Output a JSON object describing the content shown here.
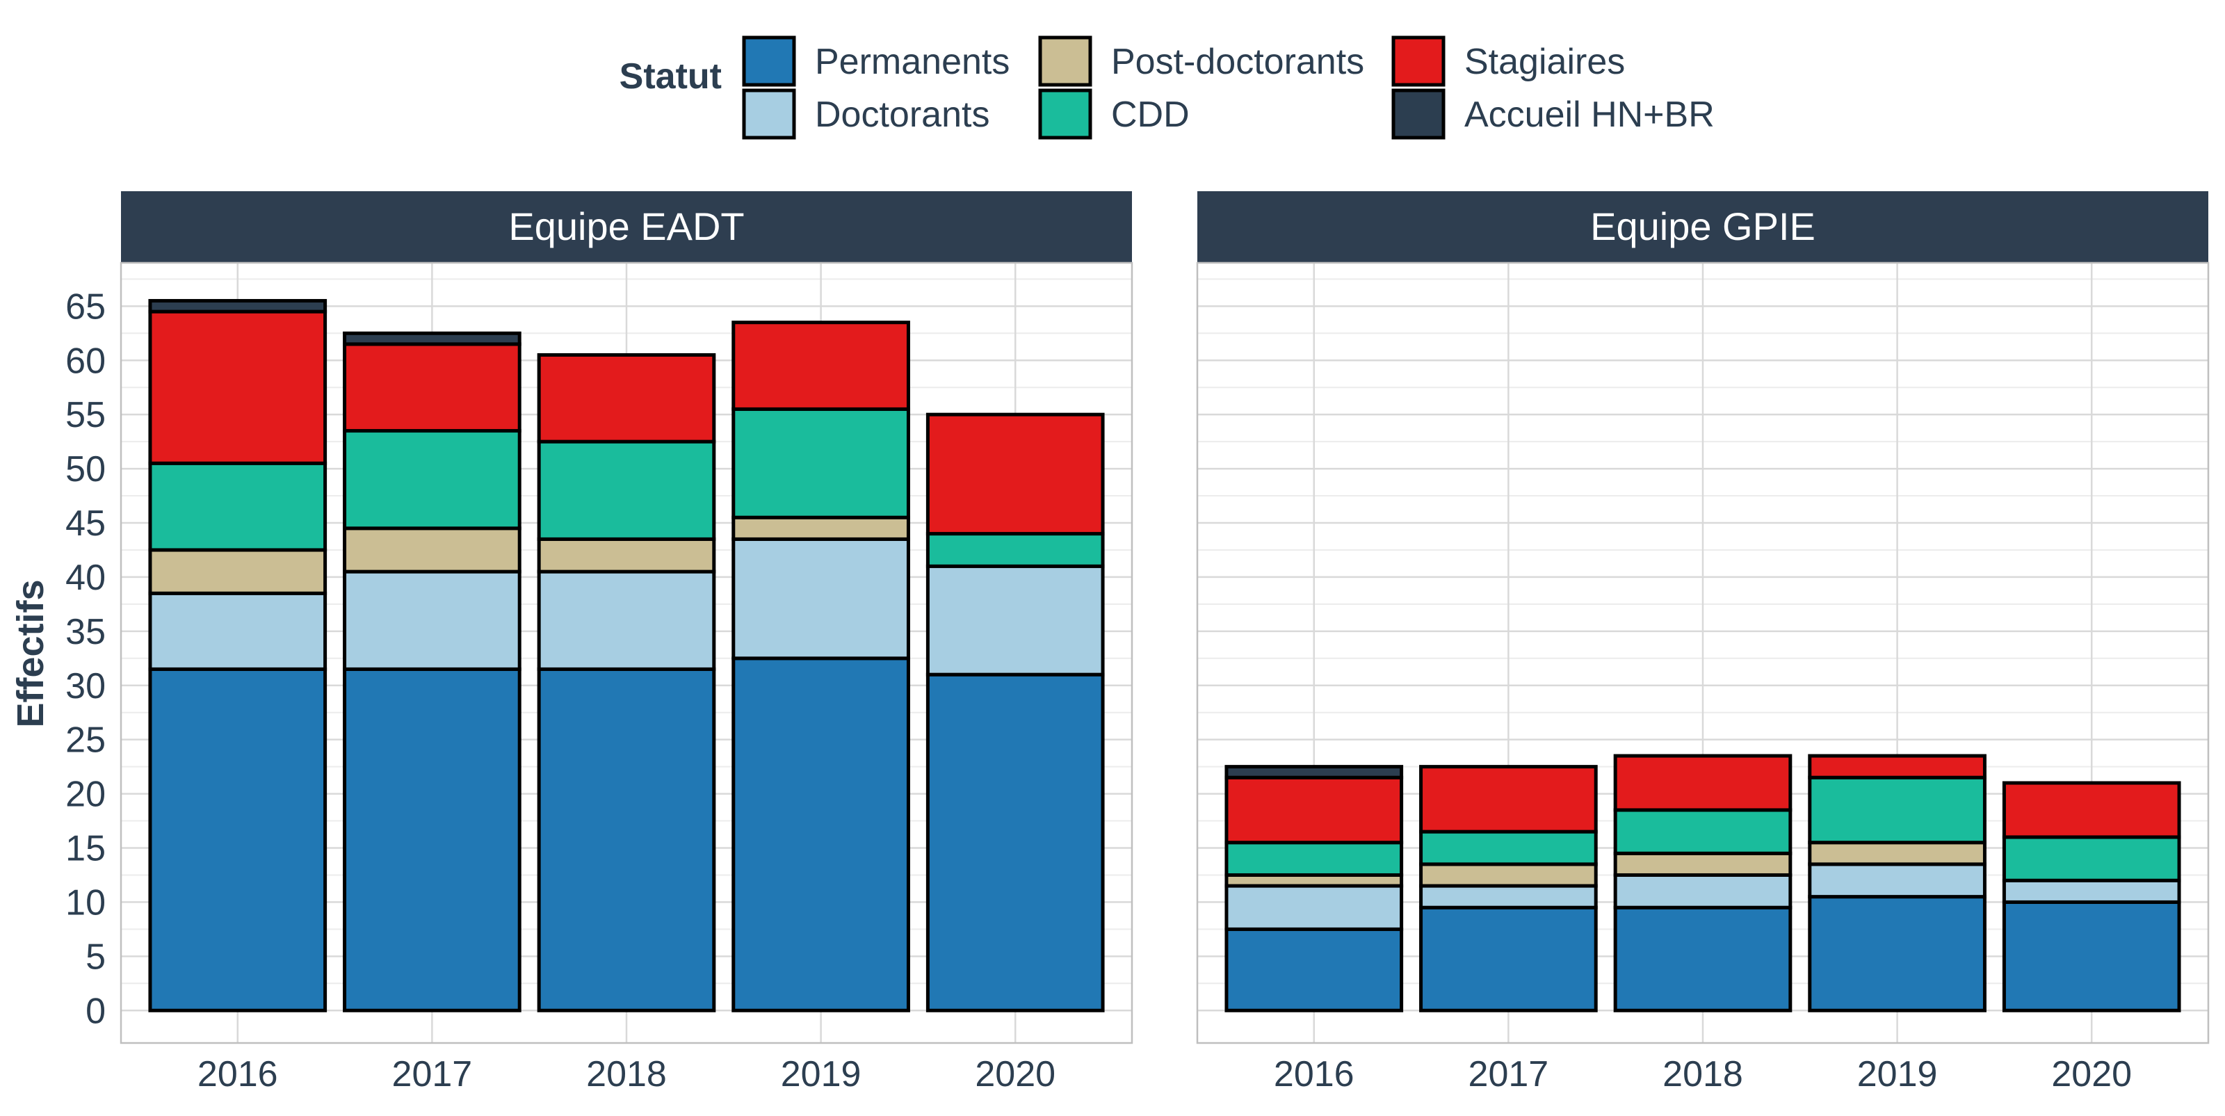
{
  "legend": {
    "title": "Statut",
    "items": [
      {
        "label": "Permanents",
        "color": "#2178B4"
      },
      {
        "label": "Doctorants",
        "color": "#A7CEE2"
      },
      {
        "label": "Post-doctorants",
        "color": "#CBBE94"
      },
      {
        "label": "CDD",
        "color": "#1ABC9C"
      },
      {
        "label": "Stagiaires",
        "color": "#E31B1C"
      },
      {
        "label": "Accueil HN+BR",
        "color": "#2C3E50"
      }
    ]
  },
  "chart_data": {
    "type": "bar",
    "stacked": true,
    "facet_header_color": "#2E3E50",
    "ylabel": "Effectifs",
    "xlabel": "",
    "ylim": [
      -3,
      69
    ],
    "yticks": [
      0,
      5,
      10,
      15,
      20,
      25,
      30,
      35,
      40,
      45,
      50,
      55,
      60,
      65
    ],
    "categories": [
      "2016",
      "2017",
      "2018",
      "2019",
      "2020"
    ],
    "series_names": [
      "Permanents",
      "Doctorants",
      "Post-doctorants",
      "CDD",
      "Stagiaires",
      "Accueil HN+BR"
    ],
    "panels": [
      {
        "title": "Equipe EADT",
        "values": [
          [
            31.5,
            7,
            4,
            8,
            14,
            1
          ],
          [
            31.5,
            9,
            4,
            9,
            8,
            1
          ],
          [
            31.5,
            9,
            3,
            9,
            8,
            0
          ],
          [
            32.5,
            11,
            2,
            10,
            8,
            0
          ],
          [
            31,
            10,
            0,
            3,
            11,
            0
          ]
        ]
      },
      {
        "title": "Equipe GPIE",
        "values": [
          [
            7.5,
            4,
            1,
            3,
            6,
            1
          ],
          [
            9.5,
            2,
            2,
            3,
            6,
            0
          ],
          [
            9.5,
            3,
            2,
            4,
            5,
            0
          ],
          [
            10.5,
            3,
            2,
            6,
            2,
            0
          ],
          [
            10,
            2,
            0,
            4,
            5,
            0
          ]
        ]
      }
    ]
  }
}
